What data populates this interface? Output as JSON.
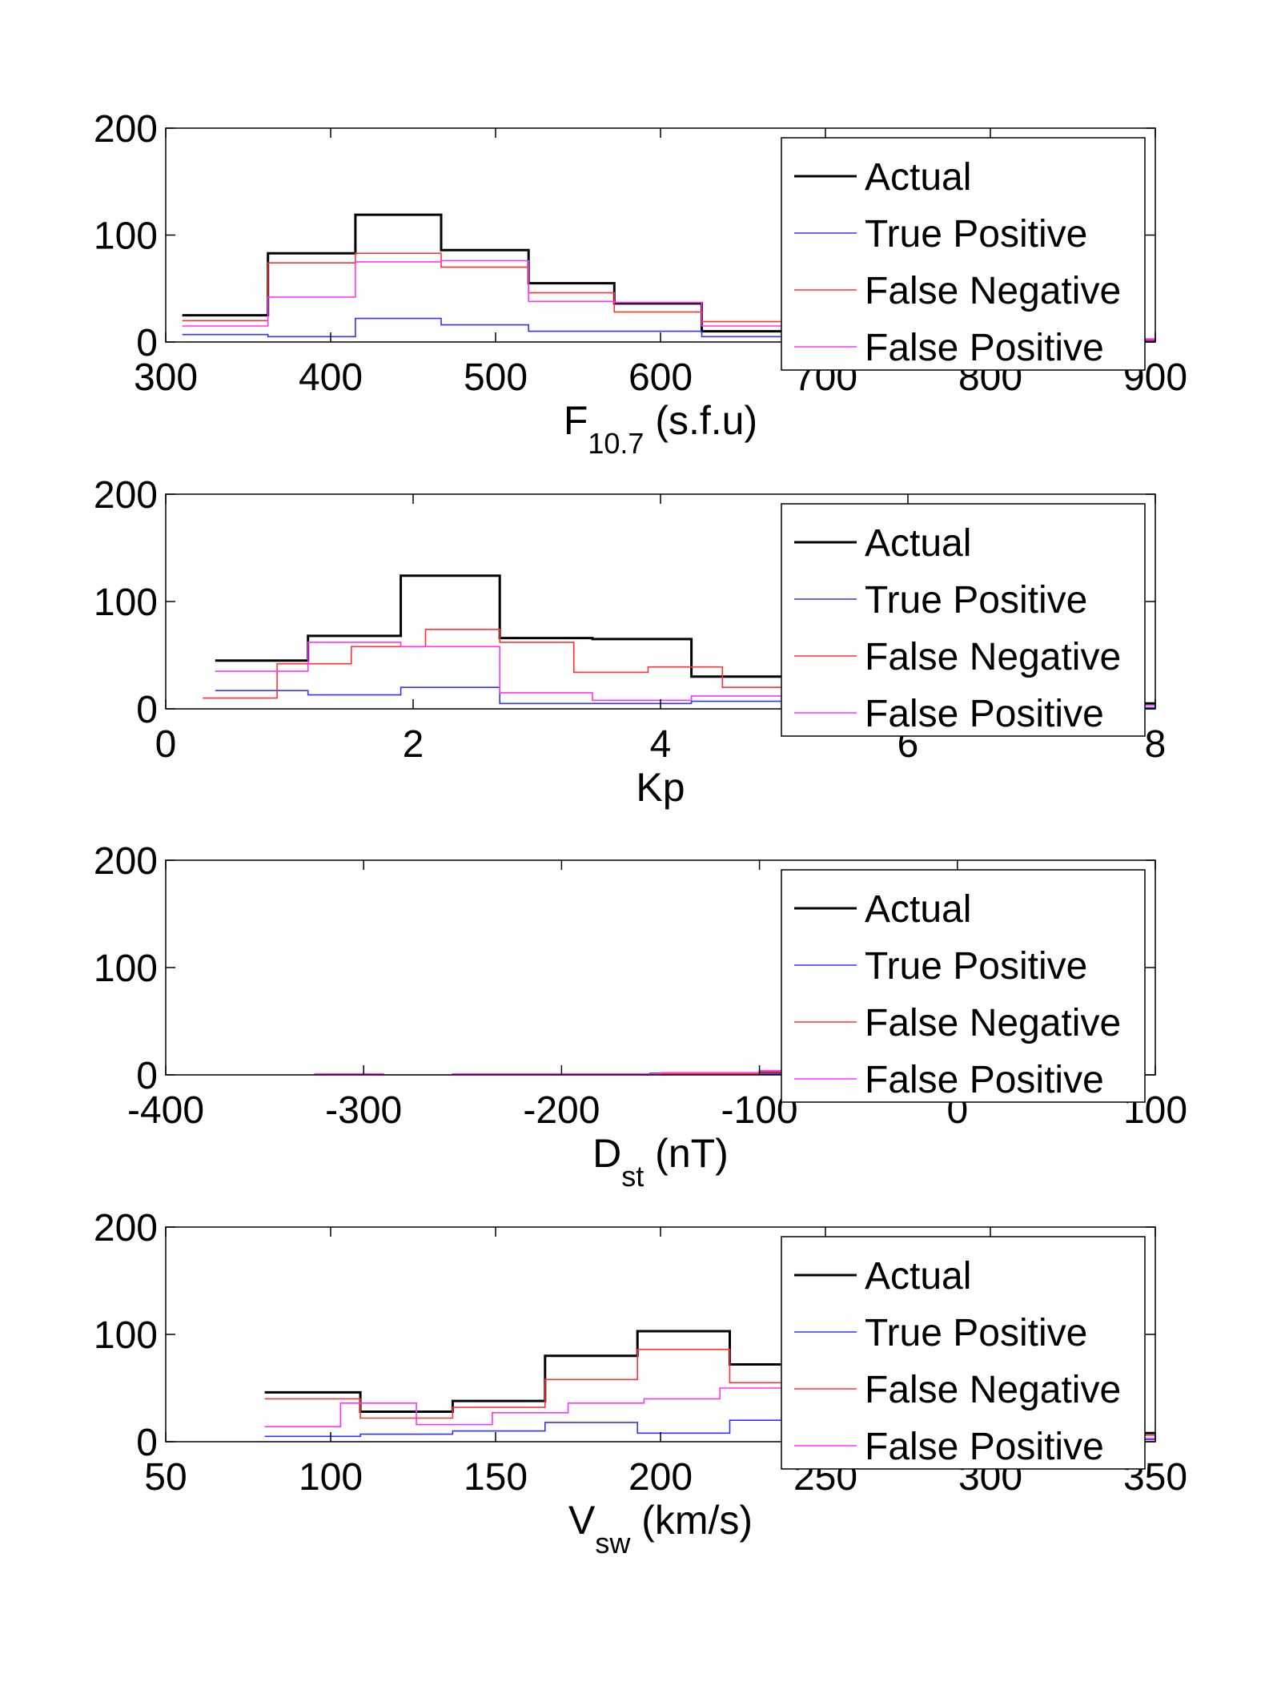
{
  "figure": {
    "legend_entries": [
      "Actual",
      "True Positive",
      "False Negative",
      "False Positive"
    ],
    "series_colors": {
      "Actual": "#000000",
      "True Positive": "#3333ff",
      "False Negative": "#ff3333",
      "False Positive": "#ff33ff"
    }
  },
  "chart_data": [
    {
      "type": "histogram-stairs",
      "xlabel_main": "F",
      "xlabel_sub": "10.7",
      "xlabel_rest": " (s.f.u)",
      "xlim": [
        300,
        900
      ],
      "ylim": [
        0,
        200
      ],
      "xticks": [
        300,
        400,
        500,
        600,
        700,
        800,
        900
      ],
      "yticks": [
        0,
        100,
        200
      ],
      "legend": "top-right",
      "series": [
        {
          "name": "Actual",
          "x": [
            310,
            362,
            415,
            467,
            520,
            572,
            625,
            677,
            730,
            782,
            835,
            887
          ],
          "y": [
            25,
            83,
            119,
            86,
            55,
            36,
            10,
            10,
            5,
            3,
            2,
            2
          ]
        },
        {
          "name": "True Positive",
          "x": [
            310,
            362,
            415,
            467,
            520,
            572,
            625,
            677,
            730,
            782,
            835,
            887
          ],
          "y": [
            7,
            5,
            22,
            16,
            10,
            10,
            5,
            4,
            3,
            2,
            1,
            1
          ]
        },
        {
          "name": "False Negative",
          "x": [
            310,
            362,
            415,
            467,
            520,
            572,
            625,
            677,
            730,
            782,
            835,
            887
          ],
          "y": [
            20,
            74,
            83,
            70,
            46,
            28,
            19,
            8,
            5,
            3,
            2,
            2
          ]
        },
        {
          "name": "False Positive",
          "x": [
            310,
            362,
            415,
            467,
            520,
            572,
            625,
            677,
            730,
            782,
            835,
            887
          ],
          "y": [
            15,
            42,
            75,
            76,
            38,
            37,
            15,
            12,
            8,
            5,
            3,
            3
          ]
        }
      ]
    },
    {
      "type": "histogram-stairs",
      "xlabel_main": "Kp",
      "xlabel_sub": "",
      "xlabel_rest": "",
      "xlim": [
        0,
        8
      ],
      "ylim": [
        0,
        200
      ],
      "xticks": [
        0,
        2,
        4,
        6,
        8
      ],
      "yticks": [
        0,
        100,
        200
      ],
      "legend": "top-right",
      "series": [
        {
          "name": "Actual",
          "x": [
            0.4,
            1.15,
            1.9,
            2.7,
            3.45,
            4.25,
            5.0,
            5.8,
            6.6,
            7.4
          ],
          "y": [
            45,
            68,
            124,
            66,
            65,
            30,
            28,
            15,
            8,
            5
          ]
        },
        {
          "name": "True Positive",
          "x": [
            0.4,
            1.15,
            1.9,
            2.7,
            3.45,
            4.25,
            5.0,
            5.8,
            6.6,
            7.4
          ],
          "y": [
            17,
            13,
            20,
            5,
            5,
            7,
            5,
            3,
            2,
            1
          ]
        },
        {
          "name": "False Negative",
          "x": [
            0.3,
            0.9,
            1.5,
            2.1,
            2.7,
            3.3,
            3.9,
            4.5,
            5.1,
            5.7,
            6.3,
            6.9
          ],
          "y": [
            10,
            42,
            58,
            74,
            62,
            34,
            39,
            20,
            18,
            10,
            5,
            3
          ]
        },
        {
          "name": "False Positive",
          "x": [
            0.4,
            1.15,
            1.9,
            2.7,
            3.45,
            4.25,
            5.0,
            5.8,
            6.6,
            7.4
          ],
          "y": [
            35,
            62,
            58,
            15,
            8,
            12,
            10,
            8,
            5,
            3
          ]
        }
      ]
    },
    {
      "type": "histogram-stairs",
      "xlabel_main": "D",
      "xlabel_sub": "st",
      "xlabel_rest": " (nT)",
      "xlim": [
        -400,
        100
      ],
      "ylim": [
        0,
        200
      ],
      "xticks": [
        -400,
        -300,
        -200,
        -100,
        0,
        100
      ],
      "yticks": [
        0,
        100,
        200
      ],
      "legend": "top-right",
      "series": [
        {
          "name": "Actual",
          "x": [
            -190,
            -155,
            -120,
            -100,
            -80,
            -60,
            -40,
            -20,
            0,
            20,
            40
          ],
          "y": [
            0,
            1,
            1,
            2,
            4,
            6,
            8,
            10,
            6,
            3,
            1
          ]
        },
        {
          "name": "True Positive",
          "x": [
            -190,
            -155,
            -120,
            -100,
            -80,
            -60,
            -40,
            -20,
            0,
            20,
            40
          ],
          "y": [
            0,
            1,
            1,
            1,
            3,
            5,
            6,
            8,
            5,
            2,
            1
          ]
        },
        {
          "name": "False Negative",
          "x": [
            -190,
            -155,
            -120,
            -100,
            -80,
            -60,
            -40,
            -20,
            0,
            20,
            40
          ],
          "y": [
            0,
            1,
            1,
            2,
            3,
            5,
            7,
            9,
            6,
            3,
            1
          ]
        },
        {
          "name": "False Positive",
          "x": [
            -325,
            -290,
            -255,
            -220,
            -185,
            -150,
            -115,
            -100,
            -80,
            -60,
            -40,
            -20,
            0,
            20,
            40
          ],
          "y": [
            1,
            0,
            1,
            1,
            1,
            2,
            2,
            4,
            5,
            6,
            7,
            8,
            5,
            2,
            1
          ]
        }
      ]
    },
    {
      "type": "histogram-stairs",
      "xlabel_main": "V",
      "xlabel_sub": "sw",
      "xlabel_rest": " (km/s)",
      "xlim": [
        50,
        350
      ],
      "ylim": [
        0,
        200
      ],
      "xticks": [
        50,
        100,
        150,
        200,
        250,
        300,
        350
      ],
      "yticks": [
        0,
        100,
        200
      ],
      "legend": "top-right",
      "series": [
        {
          "name": "Actual",
          "x": [
            80,
            109,
            137,
            165,
            193,
            221,
            249,
            277,
            305,
            333
          ],
          "y": [
            46,
            28,
            38,
            80,
            103,
            72,
            50,
            30,
            15,
            8
          ]
        },
        {
          "name": "True Positive",
          "x": [
            80,
            109,
            137,
            165,
            193,
            221,
            249,
            277,
            305,
            333
          ],
          "y": [
            5,
            7,
            10,
            18,
            8,
            20,
            8,
            5,
            3,
            2
          ]
        },
        {
          "name": "False Negative",
          "x": [
            80,
            109,
            137,
            165,
            193,
            221,
            249,
            277,
            305,
            333
          ],
          "y": [
            40,
            22,
            32,
            58,
            86,
            55,
            40,
            25,
            12,
            6
          ]
        },
        {
          "name": "False Positive",
          "x": [
            80,
            103,
            126,
            149,
            172,
            195,
            218,
            241,
            264,
            287,
            310,
            333
          ],
          "y": [
            14,
            36,
            16,
            27,
            36,
            40,
            50,
            25,
            15,
            10,
            6,
            3
          ]
        }
      ]
    }
  ]
}
